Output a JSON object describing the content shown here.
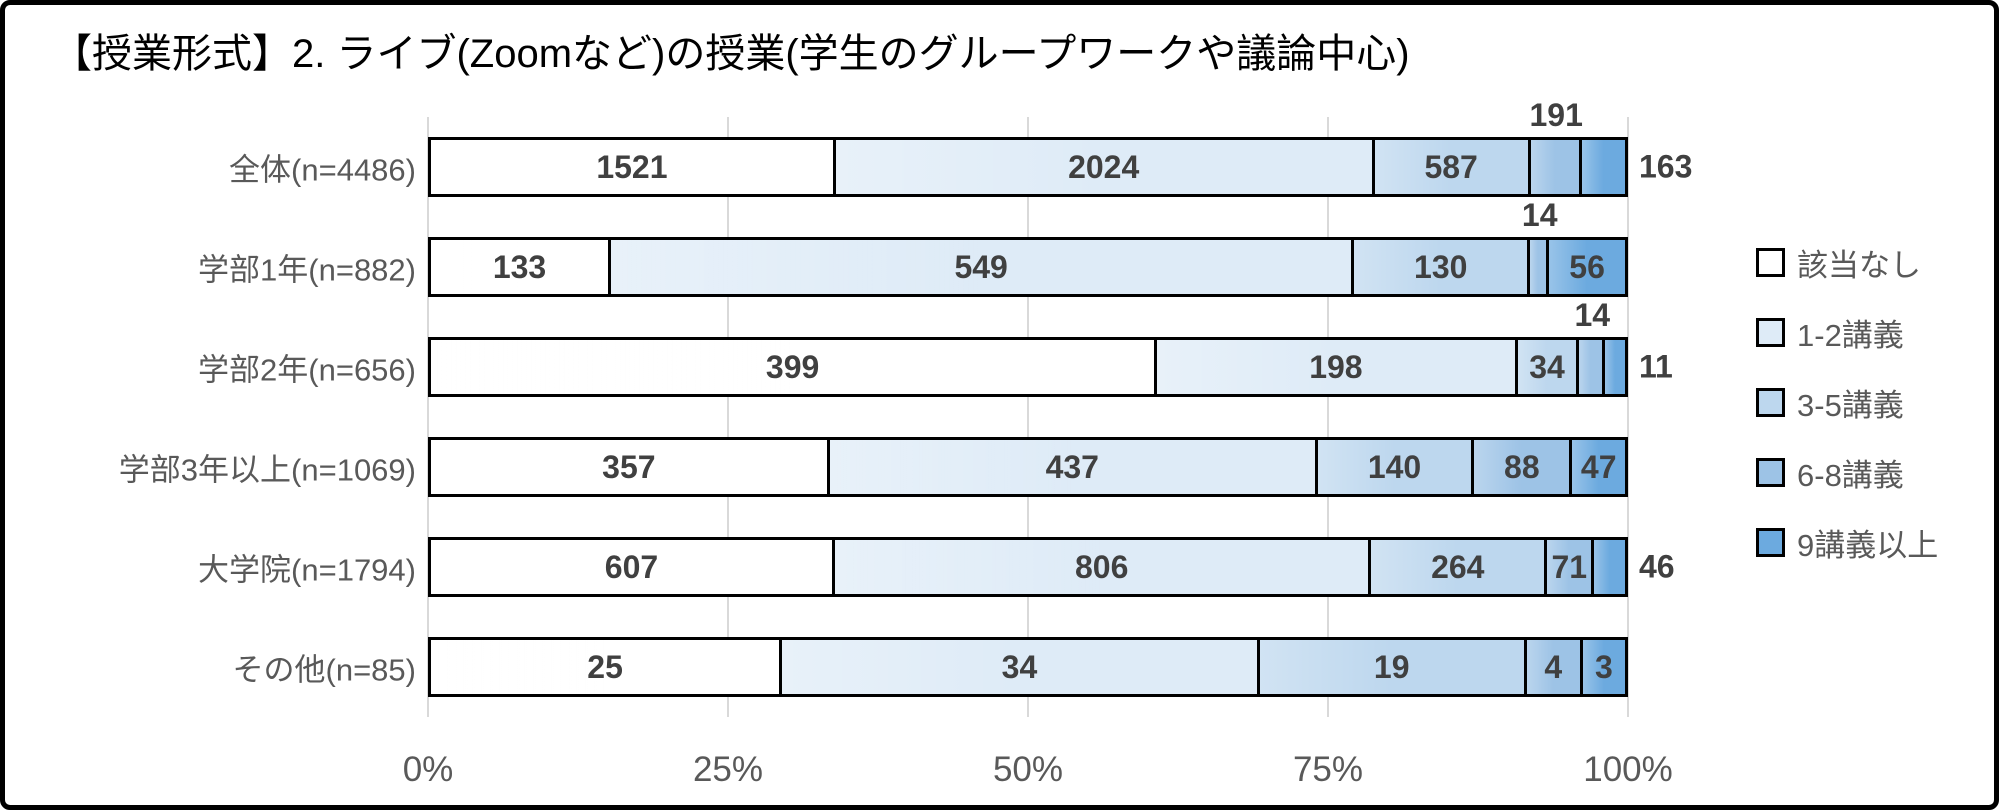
{
  "title": "【授業形式】2. ライブ(Zoomなど)の授業(学生のグループワークや議論中心)",
  "chart_data": {
    "type": "bar",
    "subtype": "100pct-stacked-horizontal",
    "title": "【授業形式】2. ライブ(Zoomなど)の授業(学生のグループワークや議論中心)",
    "categories": [
      "全体(n=4486)",
      "学部1年(n=882)",
      "学部2年(n=656)",
      "学部3年以上(n=1069)",
      "大学院(n=1794)",
      "その他(n=85)"
    ],
    "series": [
      {
        "name": "該当なし",
        "color": "#FFFFFF",
        "values": [
          1521,
          133,
          399,
          357,
          607,
          25
        ]
      },
      {
        "name": "1-2講義",
        "color": "#DEEBF7",
        "values": [
          2024,
          549,
          198,
          437,
          806,
          34
        ]
      },
      {
        "name": "3-5講義",
        "color": "#BDD7EE",
        "values": [
          587,
          130,
          34,
          140,
          264,
          19
        ]
      },
      {
        "name": "6-8講義",
        "color": "#9DC3E6",
        "values": [
          191,
          14,
          14,
          88,
          71,
          4
        ]
      },
      {
        "name": "9講義以上",
        "color": "#6CAADF",
        "values": [
          163,
          56,
          11,
          47,
          46,
          3
        ]
      }
    ],
    "row_totals": [
      4486,
      882,
      656,
      1069,
      1794,
      85
    ],
    "label_placements": [
      [
        "inside",
        "inside",
        "inside",
        "above",
        "outside"
      ],
      [
        "inside",
        "inside",
        "inside",
        "above",
        "inside"
      ],
      [
        "inside",
        "inside",
        "inside",
        "above",
        "outside"
      ],
      [
        "inside",
        "inside",
        "inside",
        "inside",
        "inside"
      ],
      [
        "inside",
        "inside",
        "inside",
        "inside",
        "outside"
      ],
      [
        "inside",
        "inside",
        "inside",
        "inside",
        "inside"
      ]
    ],
    "x_axis": {
      "ticks": [
        "0%",
        "25%",
        "50%",
        "75%",
        "100%"
      ],
      "range": [
        0,
        100
      ],
      "grid": true
    },
    "legend": {
      "position": "right"
    },
    "colors": {
      "data_label": "#404040",
      "category_label": "#595959",
      "axis_label": "#595959",
      "gridline": "#D9D9D9",
      "bar_border": "#000000",
      "frame": "#000000",
      "background": "#FFFFFF"
    }
  }
}
